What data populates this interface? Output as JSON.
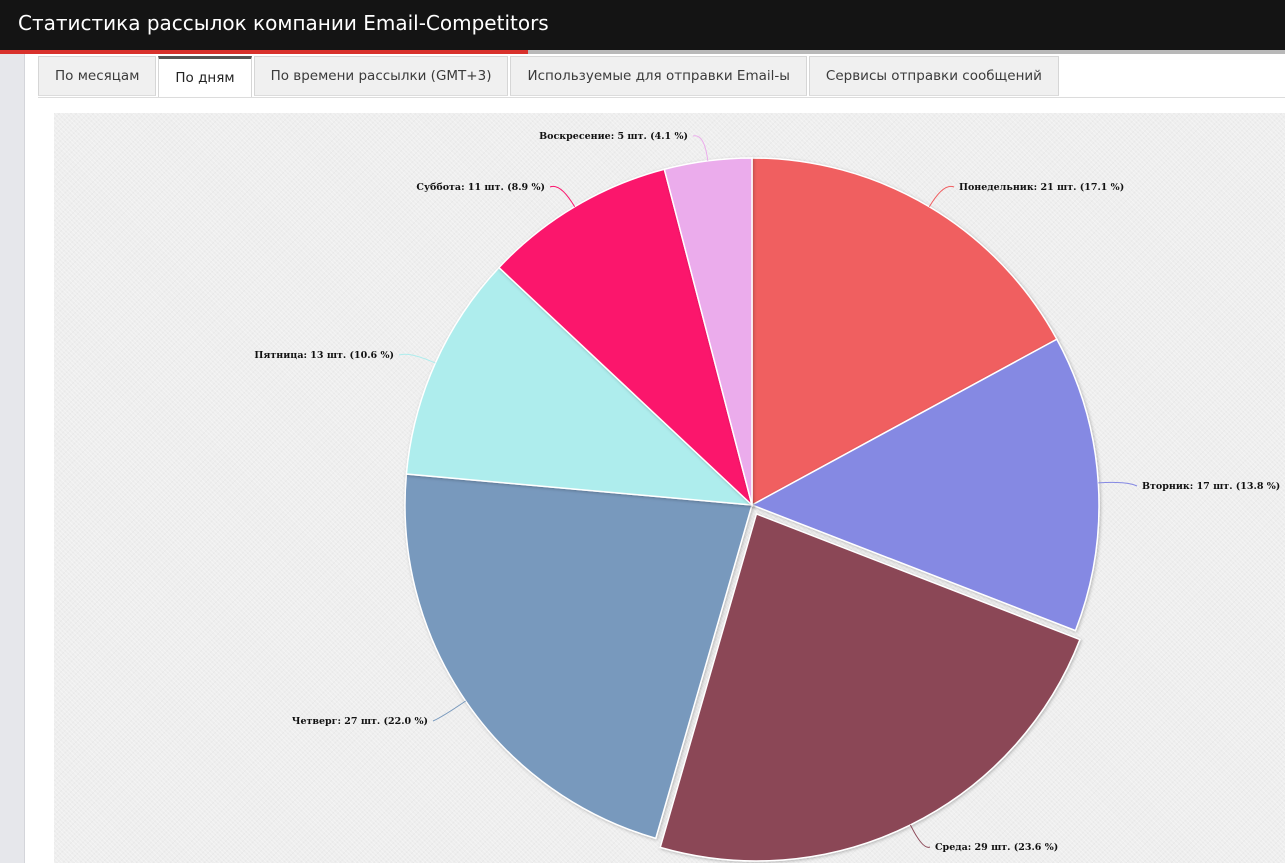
{
  "header": {
    "title": "Статистика рассылок компании Email-Competitors"
  },
  "tabs": [
    {
      "label": "По месяцам",
      "active": false
    },
    {
      "label": "По дням",
      "active": true
    },
    {
      "label": "По времени рассылки (GMT+3)",
      "active": false
    },
    {
      "label": "Используемые для отправки Email-ы",
      "active": false
    },
    {
      "label": "Сервисы отправки сообщений",
      "active": false
    }
  ],
  "chart_data": {
    "type": "pie",
    "title": "",
    "unit": "шт.",
    "slices": [
      {
        "name": "Понедельник",
        "value": 21,
        "percent": 17.1,
        "color": "#f05e60",
        "label": "Понедельник: 21 шт. (17.1 %)"
      },
      {
        "name": "Вторник",
        "value": 17,
        "percent": 13.8,
        "color": "#8589e3",
        "label": "Вторник: 17 шт. (13.8 %)"
      },
      {
        "name": "Среда",
        "value": 29,
        "percent": 23.6,
        "color": "#8b4656",
        "label": "Среда: 29 шт. (23.6 %)",
        "exploded": true
      },
      {
        "name": "Четверг",
        "value": 27,
        "percent": 22.0,
        "color": "#7899bd",
        "label": "Четверг: 27 шт. (22.0 %)"
      },
      {
        "name": "Пятница",
        "value": 13,
        "percent": 10.6,
        "color": "#aeeded",
        "label": "Пятница: 13 шт. (10.6 %)"
      },
      {
        "name": "Суббота",
        "value": 11,
        "percent": 8.9,
        "color": "#fb136c",
        "label": "Суббота: 11 шт. (8.9 %)"
      },
      {
        "name": "Воскресение",
        "value": 5,
        "percent": 4.1,
        "color": "#ebacec",
        "label": "Воскресение: 5 шт. (4.1 %)"
      }
    ]
  }
}
